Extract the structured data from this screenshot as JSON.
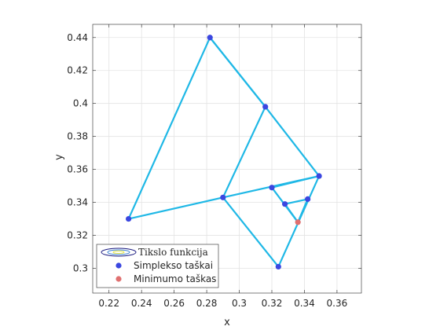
{
  "chart_data": {
    "type": "line",
    "xlabel": "x",
    "ylabel": "y",
    "xlim": [
      0.21,
      0.375
    ],
    "ylim": [
      0.285,
      0.448
    ],
    "x_ticks": [
      0.22,
      0.24,
      0.26,
      0.28,
      0.3,
      0.32,
      0.34,
      0.36
    ],
    "y_ticks": [
      0.3,
      0.32,
      0.34,
      0.36,
      0.38,
      0.4,
      0.42,
      0.44
    ],
    "x_tick_labels": [
      "0.22",
      "0.24",
      "0.26",
      "0.28",
      "0.3",
      "0.32",
      "0.34",
      "0.36"
    ],
    "y_tick_labels": [
      "0.3",
      "0.32",
      "0.34",
      "0.36",
      "0.38",
      "0.4",
      "0.42",
      "0.44"
    ],
    "grid": true,
    "legend_placement": "bottom-left",
    "colors": {
      "path": "#1fb8e6",
      "simplex_points": "#3b47e0",
      "minimum_point": "#e07070",
      "contour": "#1a1a80",
      "contour_inner": "#e6e64d"
    },
    "path": [
      [
        0.282,
        0.44
      ],
      [
        0.232,
        0.33
      ],
      [
        0.29,
        0.343
      ],
      [
        0.316,
        0.398
      ],
      [
        0.282,
        0.44
      ],
      [
        0.316,
        0.398
      ],
      [
        0.349,
        0.356
      ],
      [
        0.29,
        0.343
      ],
      [
        0.324,
        0.301
      ],
      [
        0.349,
        0.356
      ],
      [
        0.32,
        0.349
      ],
      [
        0.336,
        0.328
      ],
      [
        0.328,
        0.339
      ],
      [
        0.342,
        0.342
      ],
      [
        0.336,
        0.328
      ]
    ],
    "series": [
      {
        "name": "Simplekso taškai",
        "x": [
          0.282,
          0.232,
          0.29,
          0.316,
          0.349,
          0.324,
          0.32,
          0.328,
          0.342
        ],
        "y": [
          0.44,
          0.33,
          0.343,
          0.398,
          0.356,
          0.301,
          0.349,
          0.339,
          0.342
        ]
      },
      {
        "name": "Minimumo taškas",
        "x": [
          0.336
        ],
        "y": [
          0.328
        ]
      }
    ],
    "legend": [
      "Tikslo funkcija",
      "Simplekso taškai",
      "Minimumo taškas"
    ]
  }
}
